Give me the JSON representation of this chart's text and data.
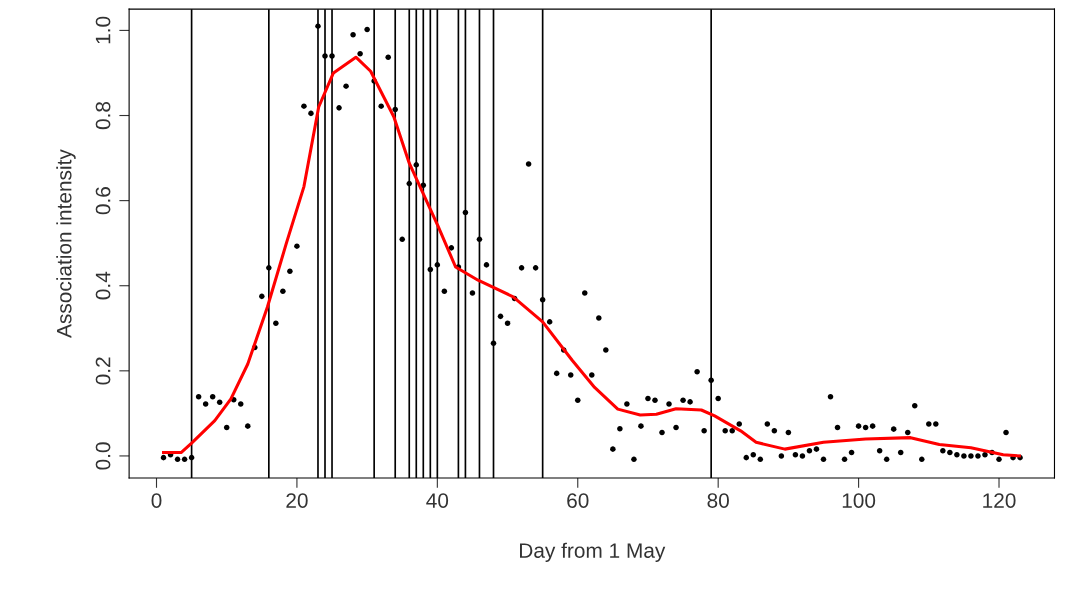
{
  "chart_data": {
    "type": "scatter",
    "xlabel": "Day from 1 May",
    "ylabel": "Association intensity",
    "xlim": [
      -3.9,
      127.9
    ],
    "ylim": [
      -0.052,
      1.05
    ],
    "xticks": [
      0,
      20,
      40,
      60,
      80,
      100,
      120
    ],
    "yticks": [
      {
        "value": 0,
        "label": "0.0"
      },
      0.2,
      0.4,
      0.6,
      0.8,
      {
        "value": 1,
        "label": "1.0"
      }
    ],
    "grid": false,
    "series": [
      {
        "color": "#000000",
        "marker": "circle",
        "x": [
          1,
          2,
          3,
          4,
          5,
          6,
          7,
          8,
          9,
          10,
          11,
          12,
          13,
          14,
          15,
          16,
          17,
          18,
          19,
          20,
          21,
          22,
          23,
          24,
          25,
          26,
          27,
          28,
          29,
          30,
          31,
          32,
          33,
          34,
          35,
          36,
          37,
          38,
          39,
          40,
          41,
          42,
          43,
          44,
          45,
          46,
          47,
          48,
          49,
          50,
          51,
          52,
          53,
          54,
          55,
          56,
          57,
          58,
          59,
          60,
          61,
          62,
          63,
          64,
          65,
          66,
          67,
          68,
          69,
          70,
          71,
          72,
          73,
          74,
          75,
          76,
          77,
          78,
          79,
          80,
          81,
          82,
          83,
          84,
          85,
          86,
          87,
          88,
          89,
          90,
          91,
          92,
          93,
          94,
          95,
          96,
          97,
          98,
          99,
          100,
          101,
          102,
          103,
          104,
          105,
          106,
          107,
          108,
          109,
          110,
          111,
          112,
          113,
          114,
          115,
          116,
          117,
          118,
          119,
          120,
          121,
          122,
          123
        ],
        "values": [
          -0.004,
          0.003,
          -0.008,
          -0.008,
          -0.004,
          0.139,
          0.122,
          0.139,
          0.126,
          0.067,
          0.132,
          0.122,
          0.07,
          0.255,
          0.375,
          0.442,
          0.312,
          0.387,
          0.434,
          0.493,
          0.822,
          0.805,
          1.01,
          0.94,
          0.94,
          0.818,
          0.869,
          0.99,
          0.945,
          1.002,
          0.881,
          0.822,
          0.937,
          0.814,
          0.509,
          0.64,
          0.684,
          0.636,
          0.438,
          0.449,
          0.387,
          0.489,
          0.444,
          0.572,
          0.383,
          0.509,
          0.449,
          0.265,
          0.328,
          0.312,
          0.37,
          0.442,
          0.686,
          0.442,
          0.367,
          0.315,
          0.194,
          0.249,
          0.19,
          0.131,
          0.383,
          0.19,
          0.324,
          0.249,
          0.016,
          0.064,
          0.122,
          -0.008,
          0.07,
          0.135,
          0.131,
          0.055,
          0.122,
          0.067,
          0.131,
          0.127,
          0.198,
          0.059,
          0.178,
          0.135,
          0.059,
          0.059,
          0.075,
          -0.004,
          0.003,
          -0.008,
          0.075,
          0.059,
          0.0,
          0.055,
          0.003,
          0.0,
          0.012,
          0.016,
          -0.008,
          0.139,
          0.067,
          -0.008,
          0.008,
          0.07,
          0.067,
          0.07,
          0.012,
          -0.008,
          0.063,
          0.008,
          0.055,
          0.118,
          -0.008,
          0.075,
          0.075,
          0.012,
          0.008,
          0.003,
          0.0,
          0.0,
          0.0,
          0.003,
          0.008,
          -0.008,
          0.055,
          -0.004,
          -0.004
        ]
      },
      {
        "type": "line",
        "color": "#ff0000",
        "marker": "none",
        "line_style": "solid",
        "x": [
          1,
          3.5,
          5,
          8.3,
          10.6,
          13,
          15.8,
          18.5,
          21,
          23.1,
          25.2,
          28.4,
          30.5,
          33.8,
          36,
          40.1,
          42.6,
          45.8,
          50.8,
          55,
          59.2,
          62.4,
          65.7,
          68.9,
          71.2,
          74,
          77.6,
          79.5,
          83.2,
          85.4,
          89.5,
          95,
          101,
          107.4,
          111.5,
          116,
          120.6,
          122.9
        ],
        "values": [
          0.008,
          0.008,
          0.03,
          0.083,
          0.134,
          0.216,
          0.35,
          0.5,
          0.633,
          0.82,
          0.9,
          0.937,
          0.904,
          0.797,
          0.688,
          0.54,
          0.444,
          0.413,
          0.374,
          0.315,
          0.225,
          0.161,
          0.11,
          0.096,
          0.098,
          0.111,
          0.108,
          0.094,
          0.059,
          0.032,
          0.016,
          0.032,
          0.04,
          0.043,
          0.027,
          0.019,
          0.003,
          0.0
        ]
      }
    ],
    "ref_lines": [
      {
        "axis": "x",
        "value": 5,
        "color": "#000000"
      },
      {
        "axis": "x",
        "value": 16,
        "color": "#000000"
      },
      {
        "axis": "x",
        "value": 23,
        "color": "#000000"
      },
      {
        "axis": "x",
        "value": 24,
        "color": "#000000"
      },
      {
        "axis": "x",
        "value": 25,
        "color": "#000000"
      },
      {
        "axis": "x",
        "value": 31,
        "color": "#000000"
      },
      {
        "axis": "x",
        "value": 34,
        "color": "#000000"
      },
      {
        "axis": "x",
        "value": 36,
        "color": "#000000"
      },
      {
        "axis": "x",
        "value": 37,
        "color": "#000000"
      },
      {
        "axis": "x",
        "value": 38,
        "color": "#000000"
      },
      {
        "axis": "x",
        "value": 39,
        "color": "#000000"
      },
      {
        "axis": "x",
        "value": 40,
        "color": "#000000"
      },
      {
        "axis": "x",
        "value": 43,
        "color": "#000000"
      },
      {
        "axis": "x",
        "value": 44,
        "color": "#000000"
      },
      {
        "axis": "x",
        "value": 46,
        "color": "#000000"
      },
      {
        "axis": "x",
        "value": 48,
        "color": "#000000"
      },
      {
        "axis": "x",
        "value": 55,
        "color": "#000000"
      },
      {
        "axis": "x",
        "value": 79,
        "color": "#000000"
      }
    ]
  }
}
